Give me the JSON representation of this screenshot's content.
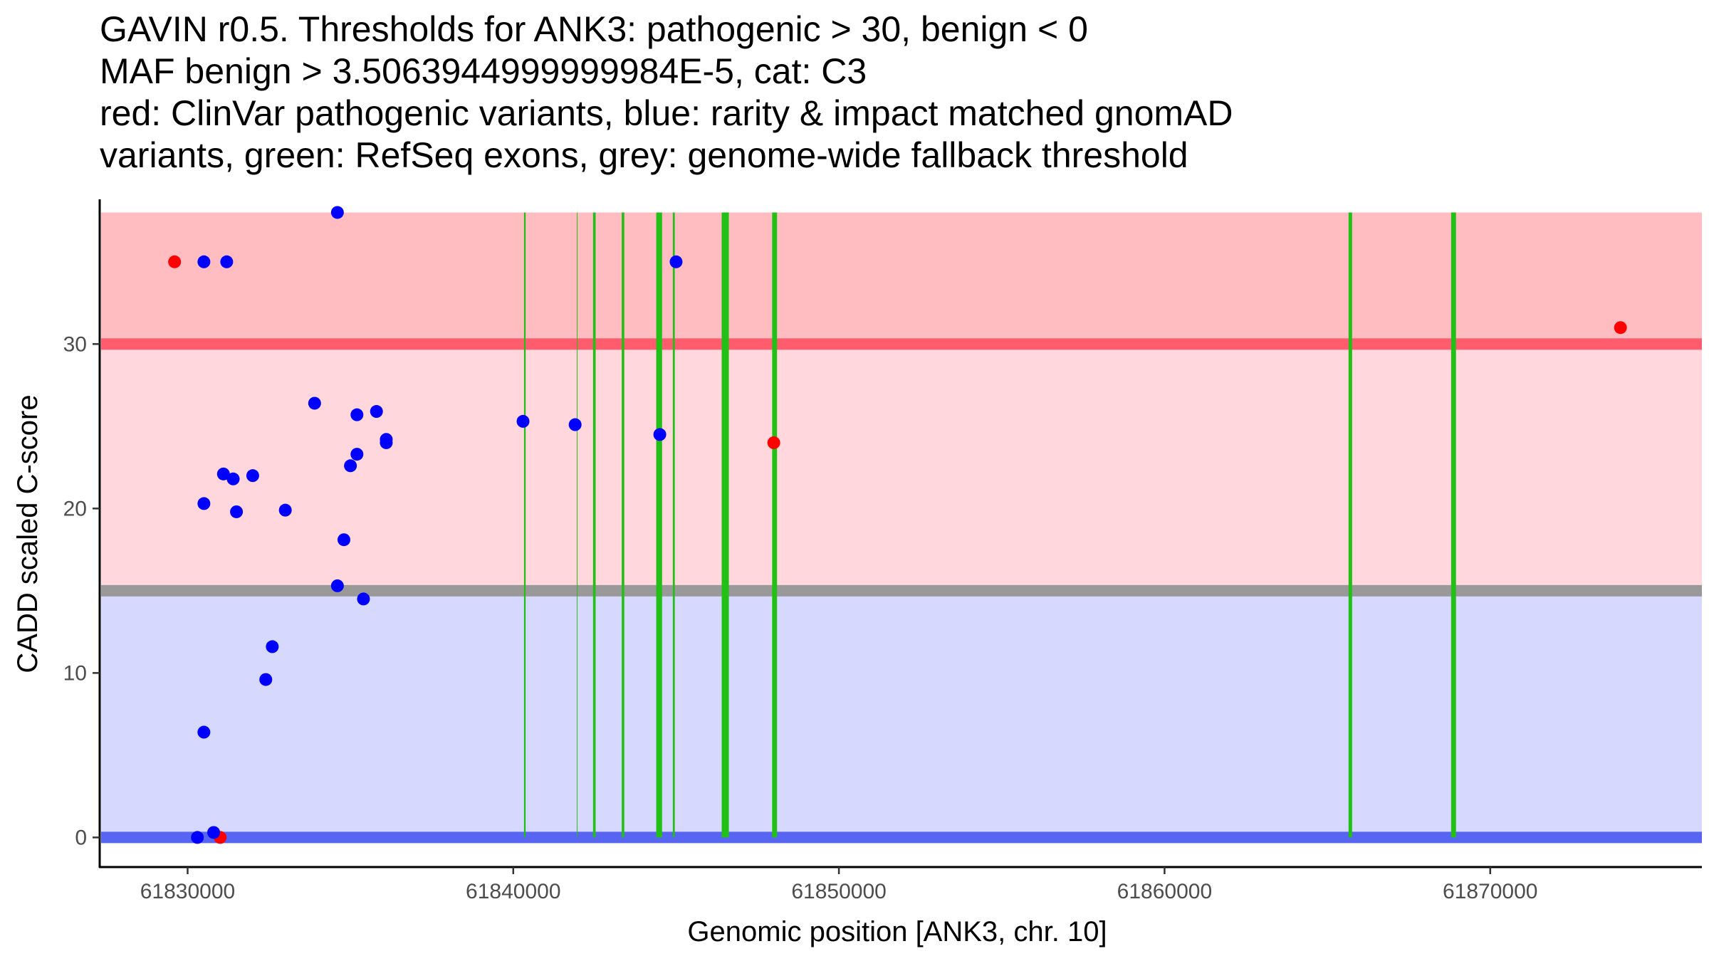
{
  "chart_data": {
    "type": "scatter",
    "title_lines": [
      "GAVIN r0.5. Thresholds for ANK3: pathogenic > 30, benign < 0",
      "MAF benign > 3.5063944999999984E-5, cat: C3",
      "red: ClinVar pathogenic variants, blue: rarity & impact matched gnomAD",
      "variants, green: RefSeq exons, grey: genome-wide fallback threshold"
    ],
    "xlabel": "Genomic position [ANK3, chr. 10]",
    "ylabel": "CADD scaled C-score",
    "xlim": [
      61827300,
      61876500
    ],
    "ylim": [
      -1.8,
      38.8
    ],
    "x_ticks": [
      61830000,
      61840000,
      61850000,
      61860000,
      61870000
    ],
    "x_tick_labels": [
      "61830000",
      "61840000",
      "61850000",
      "61860000",
      "61870000"
    ],
    "y_ticks": [
      0,
      10,
      20,
      30
    ],
    "y_tick_labels": [
      "0",
      "10",
      "20",
      "30"
    ],
    "grid": false,
    "colors": {
      "pathogenic_region": "#ffbdc2",
      "pathogenic_threshold": "#ff5c6e",
      "middle_region": "#ffd7dc",
      "fallback_threshold": "#999999",
      "benign_region": "#d6d9fd",
      "benign_threshold": "#5865f2",
      "clinvar_point": "#ff0000",
      "gnomad_point": "#0000ff",
      "exon": "#22c016"
    },
    "bands": [
      {
        "name": "pathogenic-region",
        "y0": 30,
        "y1": 38,
        "color": "#ffbdc2"
      },
      {
        "name": "middle-region",
        "y0": 15,
        "y1": 30,
        "color": "#ffd7dc"
      },
      {
        "name": "benign-region",
        "y0": 0,
        "y1": 15,
        "color": "#d6d9fd"
      }
    ],
    "threshold_lines": [
      {
        "name": "pathogenic-threshold",
        "y": 30,
        "color": "#ff5c6e"
      },
      {
        "name": "fallback-threshold",
        "y": 15,
        "color": "#999999"
      },
      {
        "name": "benign-threshold",
        "y": 0,
        "color": "#5865f2"
      }
    ],
    "exons": [
      {
        "start": 61840330,
        "end": 61840380
      },
      {
        "start": 61841950,
        "end": 61841970
      },
      {
        "start": 61842450,
        "end": 61842530
      },
      {
        "start": 61843330,
        "end": 61843410
      },
      {
        "start": 61844390,
        "end": 61844570
      },
      {
        "start": 61844900,
        "end": 61844960
      },
      {
        "start": 61846400,
        "end": 61846620
      },
      {
        "start": 61847950,
        "end": 61848100
      },
      {
        "start": 61865650,
        "end": 61865760
      },
      {
        "start": 61868800,
        "end": 61868950
      }
    ],
    "series": [
      {
        "name": "ClinVar pathogenic variants",
        "color": "#ff0000",
        "points": [
          [
            61829600,
            35
          ],
          [
            61831000,
            0
          ],
          [
            61848000,
            24
          ],
          [
            61874000,
            31
          ]
        ]
      },
      {
        "name": "rarity & impact matched gnomAD variants",
        "color": "#0000ff",
        "points": [
          [
            61834600,
            38
          ],
          [
            61830500,
            35
          ],
          [
            61831200,
            35
          ],
          [
            61845000,
            35
          ],
          [
            61833900,
            26.4
          ],
          [
            61835200,
            25.7
          ],
          [
            61835800,
            25.9
          ],
          [
            61840300,
            25.3
          ],
          [
            61841900,
            25.1
          ],
          [
            61844500,
            24.5
          ],
          [
            61836100,
            24.2
          ],
          [
            61836100,
            24.0
          ],
          [
            61835200,
            23.3
          ],
          [
            61835000,
            22.6
          ],
          [
            61831100,
            22.1
          ],
          [
            61831400,
            21.8
          ],
          [
            61832000,
            22.0
          ],
          [
            61830500,
            20.3
          ],
          [
            61831500,
            19.8
          ],
          [
            61833000,
            19.9
          ],
          [
            61834800,
            18.1
          ],
          [
            61834600,
            15.3
          ],
          [
            61835400,
            14.5
          ],
          [
            61832600,
            11.6
          ],
          [
            61832400,
            9.6
          ],
          [
            61830500,
            6.4
          ],
          [
            61830800,
            0.3
          ],
          [
            61830300,
            0
          ]
        ]
      }
    ]
  }
}
